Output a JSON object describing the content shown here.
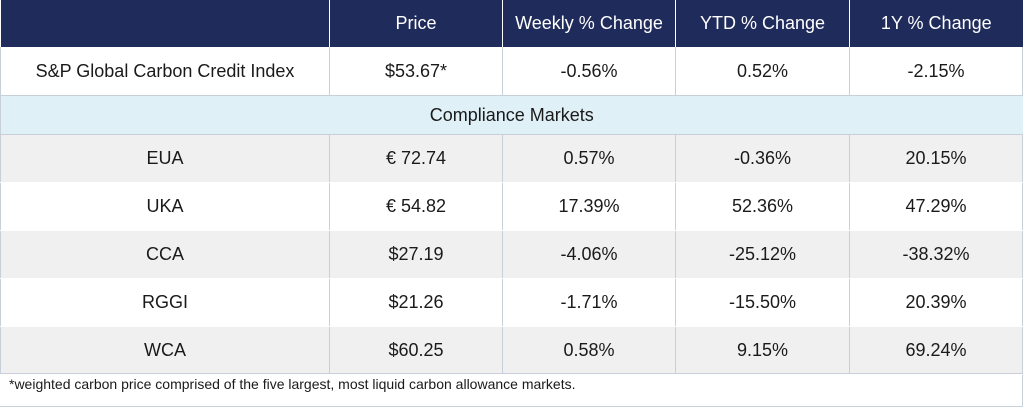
{
  "header": {
    "col0": "",
    "price": "Price",
    "weekly": "Weekly % Change",
    "ytd": "YTD % Change",
    "one_year": "1Y % Change"
  },
  "index_row": {
    "name": "S&P Global Carbon Credit Index",
    "price": "$53.67*",
    "weekly": "-0.56%",
    "ytd": "0.52%",
    "one_year": "-2.15%"
  },
  "section": {
    "title": "Compliance Markets"
  },
  "rows": [
    {
      "name": "EUA",
      "price": "€ 72.74",
      "weekly": "0.57%",
      "ytd": "-0.36%",
      "one_year": "20.15%"
    },
    {
      "name": "UKA",
      "price": "€ 54.82",
      "weekly": "17.39%",
      "ytd": "52.36%",
      "one_year": "47.29%"
    },
    {
      "name": "CCA",
      "price": "$27.19",
      "weekly": "-4.06%",
      "ytd": "-25.12%",
      "one_year": "-38.32%"
    },
    {
      "name": "RGGI",
      "price": "$21.26",
      "weekly": "-1.71%",
      "ytd": "-15.50%",
      "one_year": "20.39%"
    },
    {
      "name": "WCA",
      "price": "$60.25",
      "weekly": "0.58%",
      "ytd": "9.15%",
      "one_year": "69.24%"
    }
  ],
  "footnote": "*weighted carbon price comprised of the five largest, most liquid carbon allowance markets.",
  "colors": {
    "header_bg": "#1f2b5b",
    "section_bg": "#dff1f7",
    "shaded_row_bg": "#f0f0f0"
  }
}
